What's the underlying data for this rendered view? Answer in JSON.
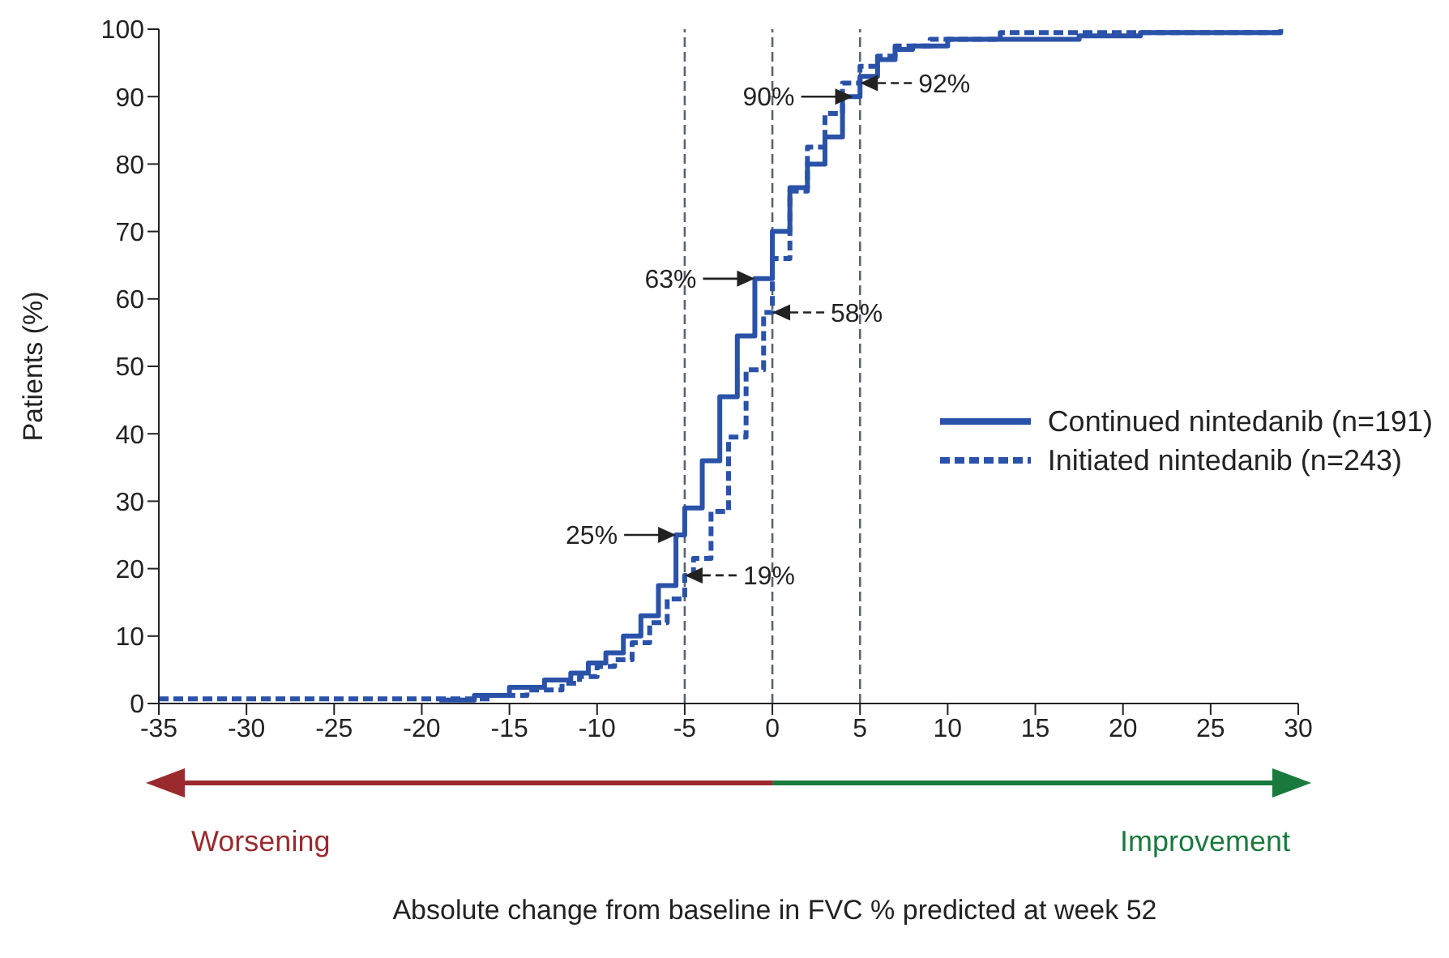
{
  "chart_data": {
    "type": "step",
    "ylabel": "Patients (%)",
    "xlim": [
      -35,
      30
    ],
    "xticks": [
      -35,
      -30,
      -25,
      -20,
      -15,
      -10,
      -5,
      0,
      5,
      10,
      15,
      20,
      25,
      30
    ],
    "ylim": [
      0,
      100
    ],
    "yticks": [
      0,
      10,
      20,
      30,
      40,
      50,
      60,
      70,
      80,
      90,
      100
    ],
    "legend": "right",
    "marker": "none",
    "series": [
      {
        "name": "Continued nintedanib (n=191)",
        "color": "#2a52a8",
        "line_style": "solid",
        "x": [
          -19,
          -17,
          -15,
          -13,
          -11.5,
          -10.5,
          -9.5,
          -8.5,
          -7.5,
          -6.5,
          -5.5,
          -5,
          -4,
          -3,
          -2,
          -1,
          0,
          1,
          2,
          3,
          4,
          5,
          6,
          7,
          8,
          10,
          17.5,
          21,
          29
        ],
        "values": [
          0.5,
          1.2,
          2.4,
          3.5,
          4.5,
          6,
          7.5,
          10,
          13,
          17.5,
          25,
          29,
          36,
          45.5,
          54.5,
          63,
          70,
          76.5,
          80,
          84,
          90,
          93,
          95.5,
          97,
          97.5,
          98.5,
          99,
          99.5,
          100
        ]
      },
      {
        "name": "Initiated nintedanib (n=243)",
        "color": "#2a52a8",
        "line_style": "dashed",
        "x": [
          -35,
          -18,
          -16,
          -14,
          -12,
          -11,
          -10,
          -9,
          -8,
          -7,
          -6,
          -5,
          -4.5,
          -3.5,
          -2.5,
          -1.5,
          -0.5,
          0,
          1,
          2,
          3,
          4,
          5,
          6,
          7,
          9,
          13,
          29
        ],
        "values": [
          0.7,
          0.7,
          1.2,
          2,
          3,
          4,
          5.5,
          6.5,
          9,
          12,
          15.5,
          19,
          21.5,
          28.5,
          39.5,
          49.5,
          58,
          66,
          76,
          82.5,
          87.5,
          92,
          94.5,
          96,
          97.5,
          98.5,
          99.5,
          99.5
        ]
      }
    ],
    "ref_lines": [
      {
        "axis": "x",
        "value": -5,
        "color": "#5a6470",
        "line_style": "dashed"
      },
      {
        "axis": "x",
        "value": 0,
        "color": "#5a6470",
        "line_style": "dashed"
      },
      {
        "axis": "x",
        "value": 5,
        "color": "#5a6470",
        "line_style": "dashed"
      }
    ],
    "annotations": [
      {
        "text": "25%",
        "x": -5.5,
        "y": 25
      },
      {
        "text": "19%",
        "x": -5,
        "y": 19
      },
      {
        "text": "63%",
        "x": -1,
        "y": 63
      },
      {
        "text": "58%",
        "x": 0,
        "y": 58
      },
      {
        "text": "90%",
        "x": 4.6,
        "y": 90
      },
      {
        "text": "92%",
        "x": 5,
        "y": 92
      },
      "Worsening",
      "Improvement",
      "Absolute change from baseline in FVC % predicted at week 52"
    ]
  }
}
